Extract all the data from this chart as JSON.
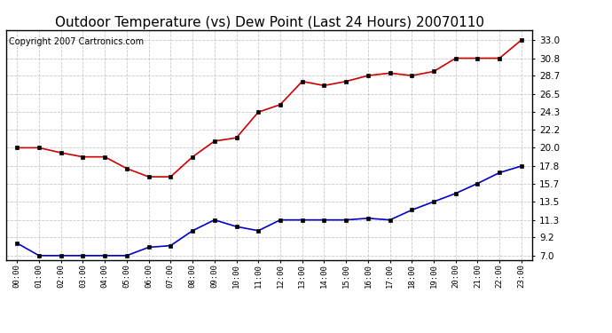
{
  "title": "Outdoor Temperature (vs) Dew Point (Last 24 Hours) 20070110",
  "copyright": "Copyright 2007 Cartronics.com",
  "x_labels": [
    "00:00",
    "01:00",
    "02:00",
    "03:00",
    "04:00",
    "05:00",
    "06:00",
    "07:00",
    "08:00",
    "09:00",
    "10:00",
    "11:00",
    "12:00",
    "13:00",
    "14:00",
    "15:00",
    "16:00",
    "17:00",
    "18:00",
    "19:00",
    "20:00",
    "21:00",
    "22:00",
    "23:00"
  ],
  "temp_data": [
    20.0,
    20.0,
    19.4,
    18.9,
    18.9,
    17.5,
    16.5,
    16.5,
    18.9,
    20.8,
    21.2,
    24.3,
    25.2,
    28.0,
    27.5,
    28.0,
    28.7,
    29.0,
    28.7,
    29.2,
    30.8,
    30.8,
    30.8,
    33.0
  ],
  "dew_data": [
    8.5,
    7.0,
    7.0,
    7.0,
    7.0,
    7.0,
    8.0,
    8.2,
    10.0,
    11.3,
    10.5,
    10.0,
    11.3,
    11.3,
    11.3,
    11.3,
    11.5,
    11.3,
    12.5,
    13.5,
    14.5,
    15.7,
    17.0,
    17.8
  ],
  "temp_color": "#cc0000",
  "dew_color": "#0000cc",
  "bg_color": "#ffffff",
  "grid_color": "#bbbbbb",
  "yticks": [
    7.0,
    9.2,
    11.3,
    13.5,
    15.7,
    17.8,
    20.0,
    22.2,
    24.3,
    26.5,
    28.7,
    30.8,
    33.0
  ],
  "ylim": [
    6.5,
    34.2
  ],
  "title_fontsize": 11,
  "copyright_fontsize": 7,
  "tick_fontsize": 7.5,
  "xtick_fontsize": 6.5
}
